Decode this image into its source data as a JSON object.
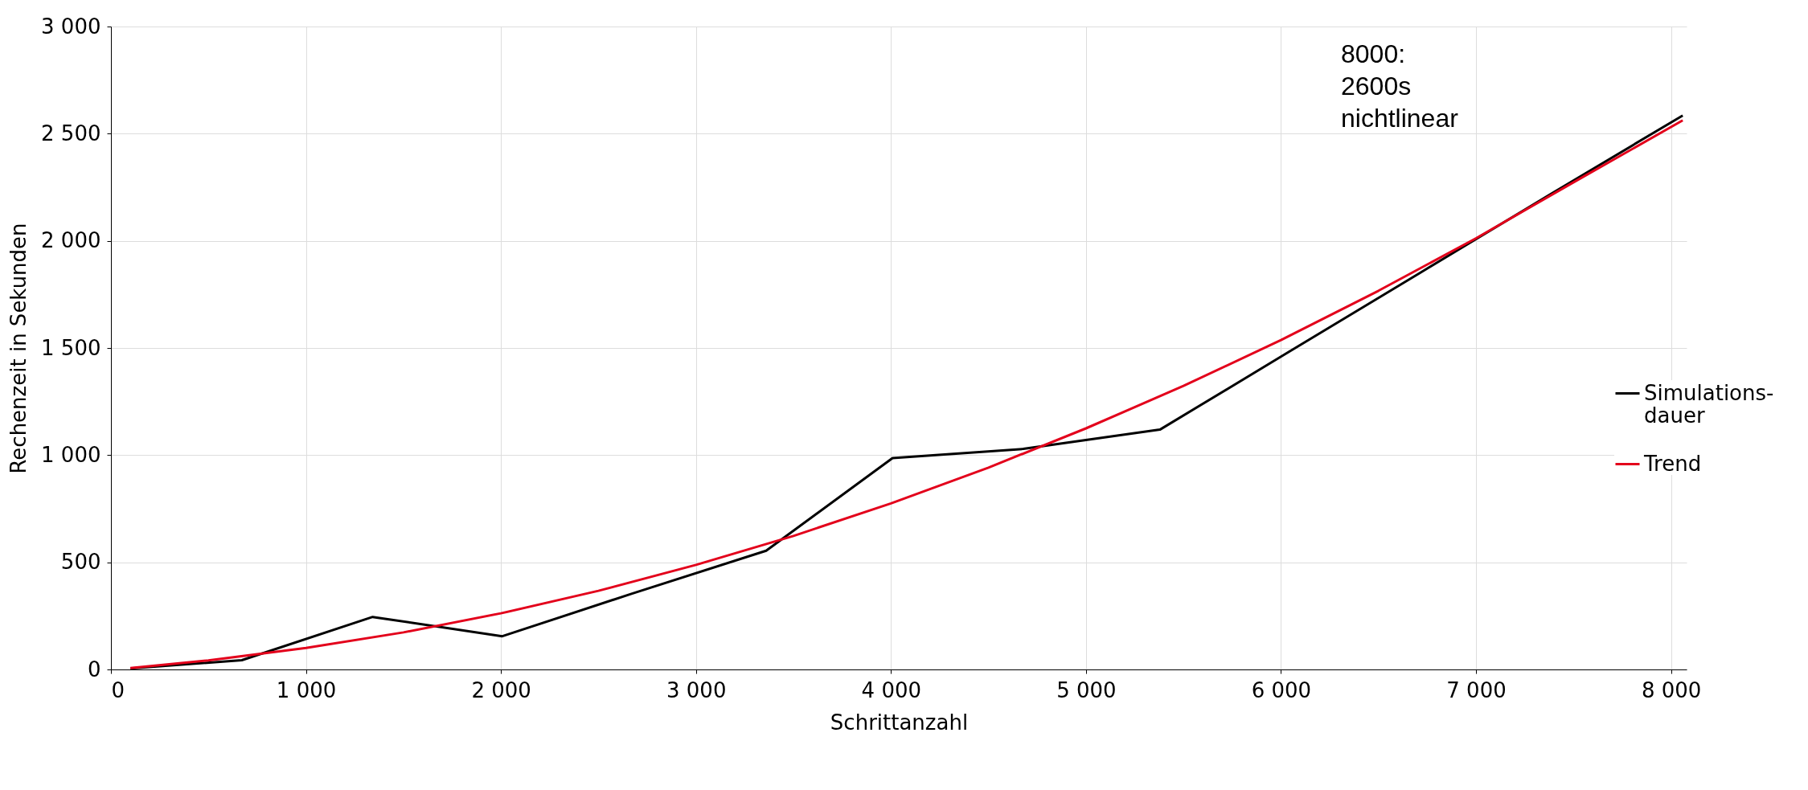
{
  "chart_data": {
    "type": "line",
    "xlabel": "Schrittanzahl",
    "ylabel": "Rechenzeit in Sekunden",
    "annotations": [
      "8000:\n2600s\nnichtlinear"
    ],
    "series": [
      {
        "name": "Simulations-dauer",
        "color": "#000000",
        "x": [
          100,
          671,
          1342,
          2007,
          2666,
          3360,
          4008,
          4679,
          5379,
          6039,
          6710,
          7381,
          8060
        ],
        "values": [
          5,
          43,
          245,
          155,
          352,
          554,
          986,
          1029,
          1119,
          1481,
          1849,
          2217,
          2585
        ]
      },
      {
        "name": "Trend",
        "color": "#e3001b",
        "x": [
          100,
          500,
          1000,
          1500,
          2000,
          2500,
          3000,
          3500,
          4000,
          4500,
          5000,
          5500,
          6000,
          6500,
          7000,
          7500,
          8060
        ],
        "values": [
          7,
          42,
          100,
          173,
          262,
          367,
          488,
          623,
          775,
          942,
          1125,
          1323,
          1537,
          1767,
          2012,
          2273,
          2562
        ]
      }
    ],
    "xlim": [
      0,
      8080
    ],
    "ylim": [
      0,
      3000
    ],
    "xticks": [
      0,
      {
        "value": 1000,
        "label": "1 000"
      },
      {
        "value": 2000,
        "label": "2 000"
      },
      {
        "value": 3000,
        "label": "3 000"
      },
      {
        "value": 4000,
        "label": "4 000"
      },
      {
        "value": 5000,
        "label": "5 000"
      },
      {
        "value": 6000,
        "label": "6 000"
      },
      {
        "value": 7000,
        "label": "7 000"
      },
      {
        "value": 8000,
        "label": "8 000"
      }
    ],
    "yticks": [
      0,
      500,
      {
        "value": 1000,
        "label": "1 000"
      },
      {
        "value": 1500,
        "label": "1 500"
      },
      {
        "value": 2000,
        "label": "2 000"
      },
      {
        "value": 2500,
        "label": "2 500"
      },
      {
        "value": 3000,
        "label": "3 000"
      }
    ],
    "grid": true,
    "legend": "right",
    "marker": "none",
    "line_style": "solid"
  }
}
